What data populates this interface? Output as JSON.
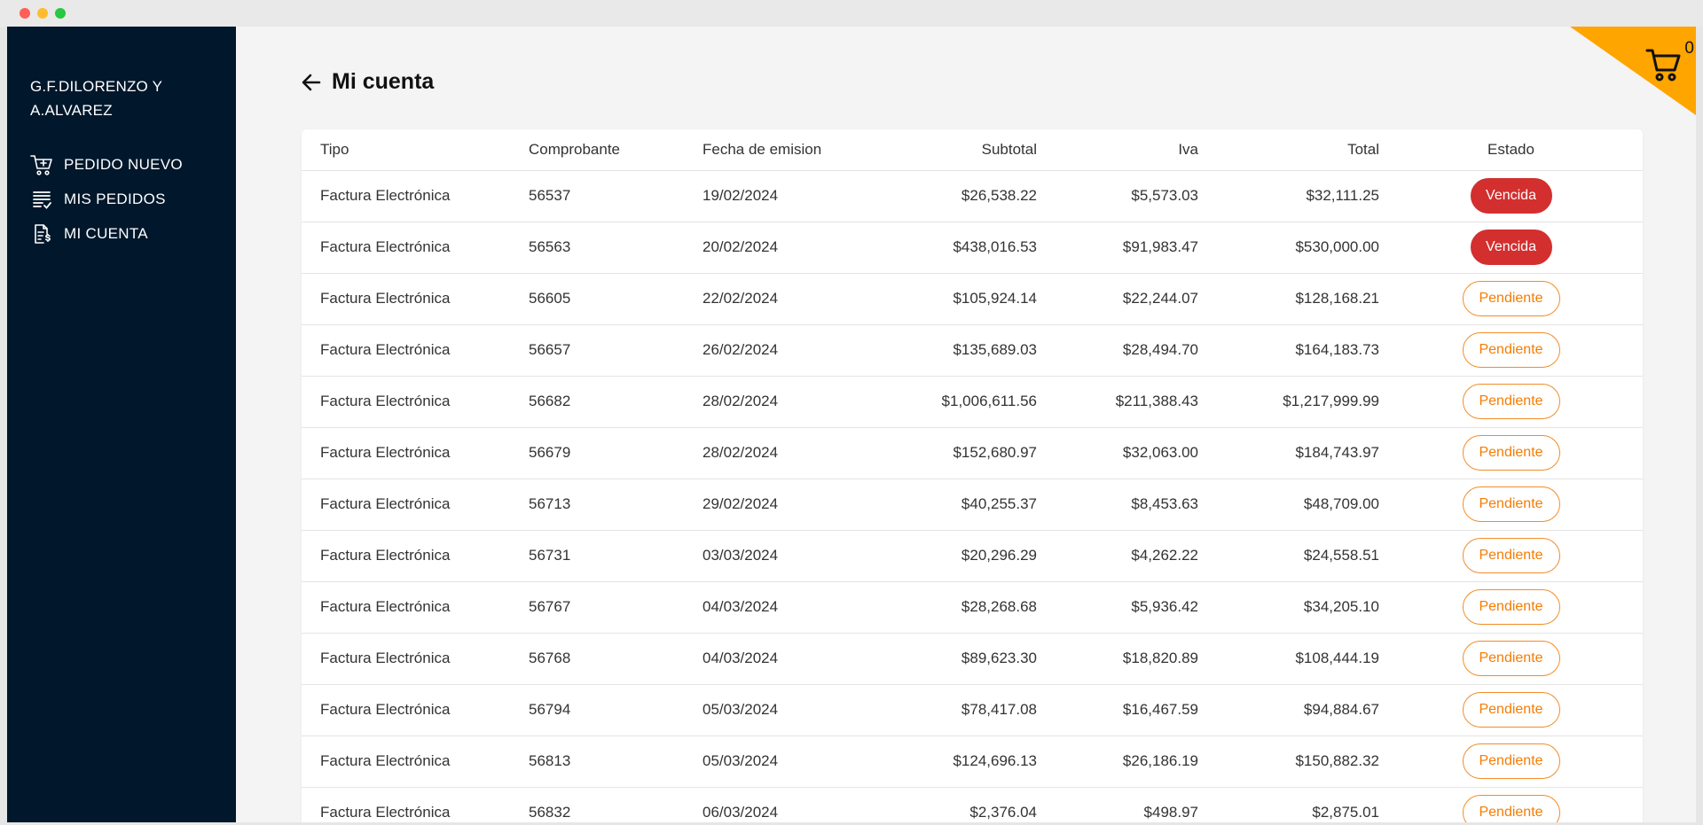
{
  "company": {
    "line1": "G.F.DILORENZO Y",
    "line2": "A.ALVAREZ"
  },
  "nav": [
    {
      "label": "PEDIDO NUEVO",
      "icon": "cart-plus-icon"
    },
    {
      "label": "MIS PEDIDOS",
      "icon": "list-check-icon"
    },
    {
      "label": "MI CUENTA",
      "icon": "invoice-dollar-icon"
    }
  ],
  "header": {
    "title": "Mi cuenta"
  },
  "cart": {
    "count": "0",
    "accent": "#ffa500"
  },
  "colors": {
    "sidebar": "#01172b",
    "vencida": "#d32f2f",
    "pendiente": "#f57c00"
  },
  "table": {
    "columns": [
      "Tipo",
      "Comprobante",
      "Fecha de emision",
      "Subtotal",
      "Iva",
      "Total",
      "Estado"
    ],
    "rows": [
      [
        "Factura Electrónica",
        "56537",
        "19/02/2024",
        "$26,538.22",
        "$5,573.03",
        "$32,111.25",
        "Vencida"
      ],
      [
        "Factura Electrónica",
        "56563",
        "20/02/2024",
        "$438,016.53",
        "$91,983.47",
        "$530,000.00",
        "Vencida"
      ],
      [
        "Factura Electrónica",
        "56605",
        "22/02/2024",
        "$105,924.14",
        "$22,244.07",
        "$128,168.21",
        "Pendiente"
      ],
      [
        "Factura Electrónica",
        "56657",
        "26/02/2024",
        "$135,689.03",
        "$28,494.70",
        "$164,183.73",
        "Pendiente"
      ],
      [
        "Factura Electrónica",
        "56682",
        "28/02/2024",
        "$1,006,611.56",
        "$211,388.43",
        "$1,217,999.99",
        "Pendiente"
      ],
      [
        "Factura Electrónica",
        "56679",
        "28/02/2024",
        "$152,680.97",
        "$32,063.00",
        "$184,743.97",
        "Pendiente"
      ],
      [
        "Factura Electrónica",
        "56713",
        "29/02/2024",
        "$40,255.37",
        "$8,453.63",
        "$48,709.00",
        "Pendiente"
      ],
      [
        "Factura Electrónica",
        "56731",
        "03/03/2024",
        "$20,296.29",
        "$4,262.22",
        "$24,558.51",
        "Pendiente"
      ],
      [
        "Factura Electrónica",
        "56767",
        "04/03/2024",
        "$28,268.68",
        "$5,936.42",
        "$34,205.10",
        "Pendiente"
      ],
      [
        "Factura Electrónica",
        "56768",
        "04/03/2024",
        "$89,623.30",
        "$18,820.89",
        "$108,444.19",
        "Pendiente"
      ],
      [
        "Factura Electrónica",
        "56794",
        "05/03/2024",
        "$78,417.08",
        "$16,467.59",
        "$94,884.67",
        "Pendiente"
      ],
      [
        "Factura Electrónica",
        "56813",
        "05/03/2024",
        "$124,696.13",
        "$26,186.19",
        "$150,882.32",
        "Pendiente"
      ],
      [
        "Factura Electrónica",
        "56832",
        "06/03/2024",
        "$2,376.04",
        "$498.97",
        "$2,875.01",
        "Pendiente"
      ]
    ]
  }
}
